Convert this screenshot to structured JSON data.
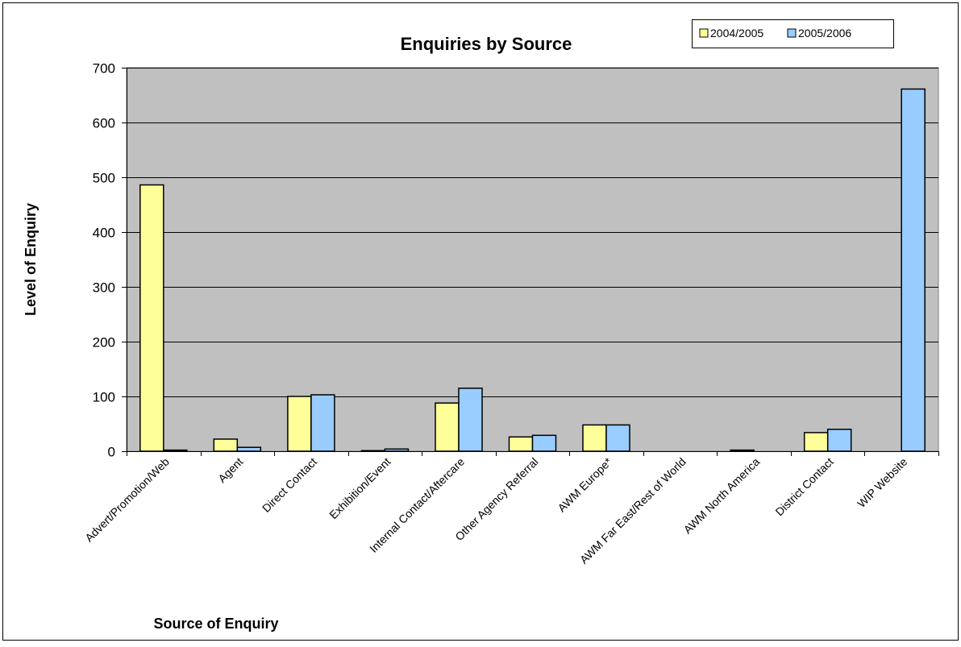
{
  "chart_data": {
    "type": "bar",
    "title": "Enquiries by Source",
    "xlabel": "Source of Enquiry",
    "ylabel": "Level of Enquiry",
    "ylim": [
      0,
      700
    ],
    "yticks": [
      0,
      100,
      200,
      300,
      400,
      500,
      600,
      700
    ],
    "grid": true,
    "legend_position": "top-right",
    "categories": [
      "Advert/Promotion/Web",
      "Agent",
      "Direct Contact",
      "Exhibition/Event",
      "Internal Contact/Aftercare",
      "Other Agency Referral",
      "AWM Europe*",
      "AWM Far East/Rest of World",
      "AWM North America",
      "District Contact",
      "WIP Website"
    ],
    "series": [
      {
        "name": "2004/2005",
        "color": "#ffff99",
        "values": [
          486,
          22,
          100,
          1,
          88,
          26,
          48,
          0,
          2,
          34,
          0
        ]
      },
      {
        "name": "2005/2006",
        "color": "#99ccff",
        "values": [
          2,
          7,
          103,
          4,
          115,
          29,
          48,
          0,
          0,
          40,
          661
        ]
      }
    ],
    "plot_background": "#c0c0c0"
  }
}
